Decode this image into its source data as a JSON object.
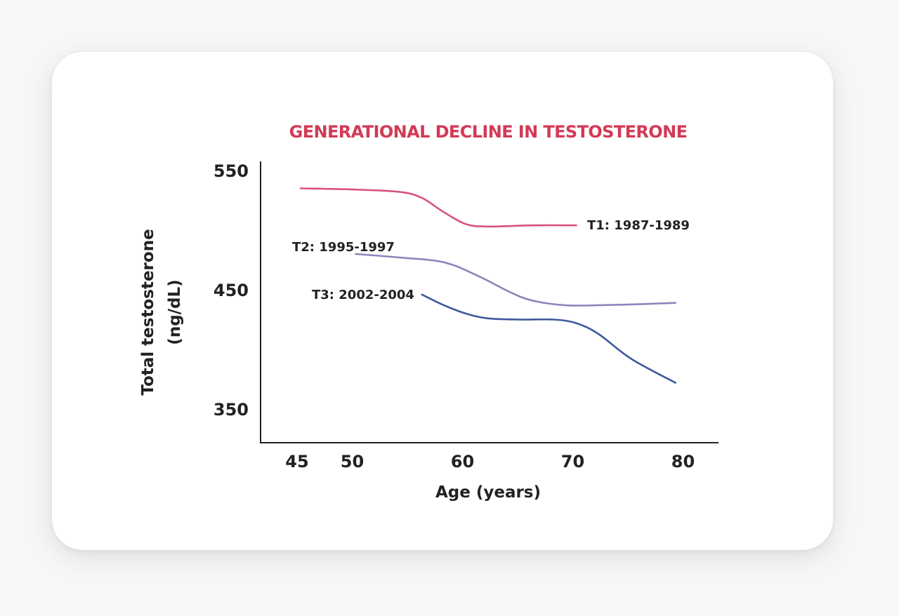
{
  "chart_data": {
    "type": "line",
    "title": "GENERATIONAL DECLINE IN TESTOSTERONE",
    "xlabel": "Age (years)",
    "ylabel": "Total testosterone",
    "ylabel_unit": "(ng/dL)",
    "xlim": [
      42,
      85
    ],
    "ylim": [
      325,
      555
    ],
    "x_ticks": [
      45,
      50,
      60,
      70,
      80
    ],
    "y_ticks": [
      550,
      450,
      350
    ],
    "grid": false,
    "series": [
      {
        "name": "T1: 1987-1989",
        "color": "#d9537a",
        "x": [
          45,
          50,
          54,
          56,
          58,
          60,
          62,
          66,
          70
        ],
        "y": [
          535,
          534,
          532,
          527,
          515,
          505,
          503,
          504,
          504
        ]
      },
      {
        "name": "T2: 1995-1997",
        "color": "#8a86bb",
        "x": [
          50,
          54,
          58,
          61,
          64,
          66,
          69,
          72,
          76,
          79
        ],
        "y": [
          480,
          477,
          473,
          462,
          448,
          441,
          437,
          437,
          438,
          439
        ]
      },
      {
        "name": "T3: 2002-2004",
        "color": "#3f5a9c",
        "x": [
          56,
          58,
          60,
          62,
          65,
          68,
          70,
          72,
          75,
          79
        ],
        "y": [
          446,
          437,
          430,
          426,
          425,
          425,
          422,
          413,
          392,
          372
        ]
      }
    ],
    "title_color": "#d33a55"
  }
}
